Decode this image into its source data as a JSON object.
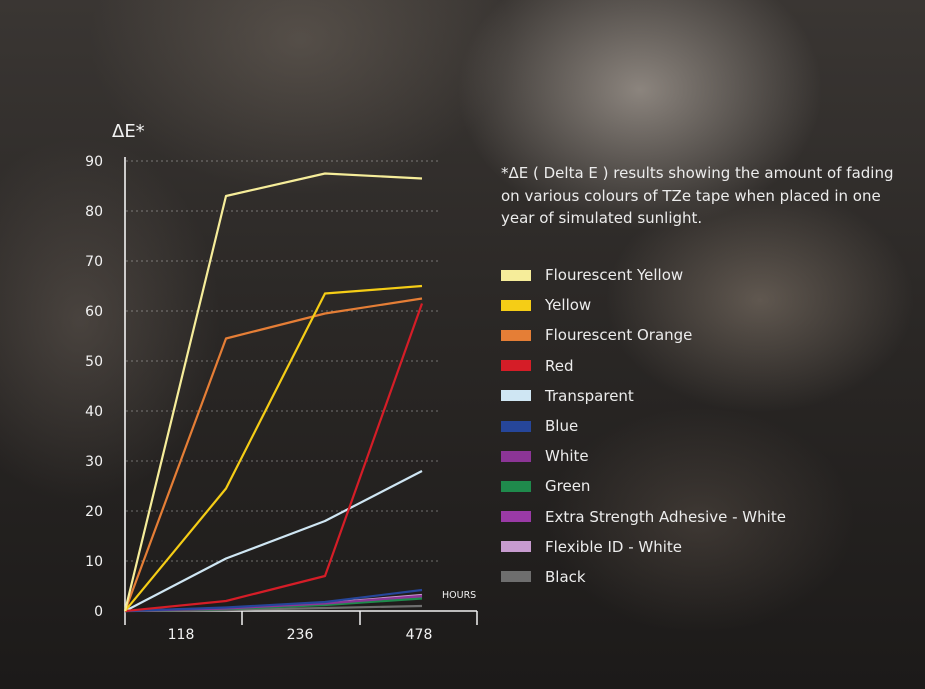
{
  "chart_data": {
    "type": "line",
    "ylabel": "ΔE*",
    "xlabel": "HOURS",
    "ylim": [
      0,
      90
    ],
    "yticks": [
      0,
      10,
      20,
      30,
      40,
      50,
      60,
      70,
      80,
      90
    ],
    "x_tick_labels": [
      "118",
      "236",
      "478"
    ],
    "x": [
      0,
      118,
      236,
      478
    ],
    "grid": "horizontal dashed",
    "legend_position": "right",
    "note": "*ΔE ( Delta E ) results showing the amount of fading on various colours of TZe tape when placed in one year of simulated sunlight.",
    "series": [
      {
        "name": "Flourescent Yellow",
        "color": "#f6ed9a",
        "values": [
          0,
          83,
          87.5,
          86.5
        ]
      },
      {
        "name": "Yellow",
        "color": "#f5cd16",
        "values": [
          0,
          24.5,
          63.5,
          65
        ]
      },
      {
        "name": "Flourescent Orange",
        "color": "#e57e36",
        "values": [
          0,
          54.5,
          59.5,
          62.5
        ]
      },
      {
        "name": "Red",
        "color": "#d51d27",
        "values": [
          0,
          2,
          7,
          61.5
        ]
      },
      {
        "name": "Transparent",
        "color": "#cfe6f3",
        "values": [
          0,
          10.5,
          18,
          28
        ]
      },
      {
        "name": "Blue",
        "color": "#26469a",
        "values": [
          0,
          0.7,
          1.8,
          4.2
        ]
      },
      {
        "name": "White",
        "color": "#8c3596",
        "values": [
          0,
          0.5,
          1.5,
          3
        ]
      },
      {
        "name": "Green",
        "color": "#1f8a4c",
        "values": [
          0,
          0.4,
          1.2,
          2.5
        ]
      },
      {
        "name": "Extra Strength Adhesive - White",
        "color": "#9a3aa6",
        "values": [
          0,
          0.5,
          1.3,
          2.8
        ]
      },
      {
        "name": "Flexible ID - White",
        "color": "#c79bcf",
        "values": [
          0,
          0.6,
          1.6,
          3.2
        ]
      },
      {
        "name": "Black",
        "color": "#6e6e6e",
        "values": [
          0,
          0.2,
          0.6,
          1
        ]
      }
    ]
  }
}
